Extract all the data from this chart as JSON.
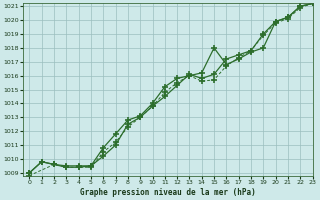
{
  "title": "Graphe pression niveau de la mer (hPa)",
  "bg_color": "#cee9e9",
  "grid_color": "#9bbfbf",
  "line_color": "#2d6e2d",
  "xlim": [
    -0.5,
    23
  ],
  "ylim": [
    1008.8,
    1021.2
  ],
  "xticks": [
    0,
    1,
    2,
    3,
    4,
    5,
    6,
    7,
    8,
    9,
    10,
    11,
    12,
    13,
    14,
    15,
    16,
    17,
    18,
    19,
    20,
    21,
    22,
    23
  ],
  "yticks": [
    1009,
    1010,
    1011,
    1012,
    1013,
    1014,
    1015,
    1016,
    1017,
    1018,
    1019,
    1020,
    1021
  ],
  "series1_x": [
    0,
    1,
    2,
    3,
    4,
    5,
    6,
    7,
    8,
    9,
    10,
    11,
    12,
    13,
    14,
    15,
    16,
    17,
    18,
    19,
    20,
    21,
    22,
    23
  ],
  "series1_y": [
    1009.0,
    1009.8,
    1009.6,
    1009.5,
    1009.5,
    1009.5,
    1010.2,
    1011.0,
    1012.5,
    1013.0,
    1013.8,
    1014.5,
    1015.3,
    1016.1,
    1015.8,
    1016.1,
    1017.2,
    1017.5,
    1017.8,
    1019.0,
    1019.9,
    1020.2,
    1021.0,
    1021.2
  ],
  "series2_x": [
    0,
    1,
    2,
    3,
    4,
    5,
    6,
    7,
    8,
    9,
    10,
    11,
    12,
    13,
    14,
    15,
    16,
    17,
    18,
    19,
    20,
    21,
    22,
    23
  ],
  "series2_y": [
    1009.0,
    1009.8,
    1009.6,
    1009.4,
    1009.4,
    1009.5,
    1010.8,
    1011.8,
    1012.8,
    1013.1,
    1014.0,
    1015.2,
    1015.8,
    1016.0,
    1016.2,
    1018.0,
    1016.8,
    1017.2,
    1017.7,
    1018.0,
    1019.9,
    1020.2,
    1021.0,
    1021.2
  ],
  "series3_x": [
    0,
    2,
    3,
    4,
    5,
    6,
    7,
    8,
    9,
    10,
    11,
    12,
    13,
    14,
    15,
    16,
    17,
    18,
    19,
    20,
    21,
    22,
    23
  ],
  "series3_y": [
    1008.8,
    1009.6,
    1009.4,
    1009.4,
    1009.4,
    1010.5,
    1011.2,
    1012.3,
    1013.0,
    1013.8,
    1014.8,
    1015.5,
    1016.0,
    1015.6,
    1015.7,
    1016.7,
    1017.3,
    1017.8,
    1018.9,
    1019.8,
    1020.1,
    1020.9,
    1021.2
  ]
}
